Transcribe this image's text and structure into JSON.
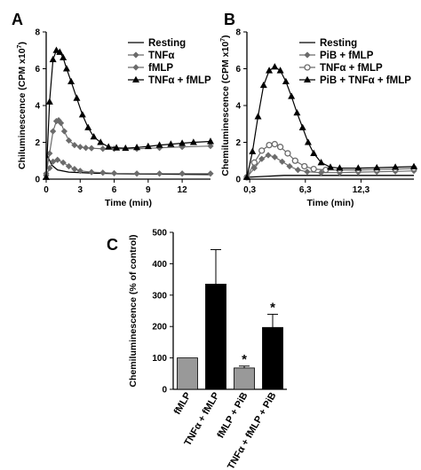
{
  "chart_data": [
    {
      "panel_letter": "A",
      "type": "line",
      "xlabel": "Time (min)",
      "ylabel": "Chiluminescence (CPM x10",
      "ylabel_sup": "7",
      "ylabel_close": ")",
      "xlim": [
        0,
        14.5
      ],
      "ylim": [
        0,
        8
      ],
      "xticks": [
        0,
        3,
        6,
        9,
        12
      ],
      "xtick_labels": [
        "0",
        "3",
        "6",
        "9",
        "12"
      ],
      "yticks": [
        0,
        2,
        4,
        6,
        8
      ],
      "ytick_labels": [
        "0",
        "2",
        "4",
        "6",
        "8"
      ],
      "legend_position": "top-right",
      "grid": false,
      "series": [
        {
          "name": "Resting",
          "marker": "none",
          "color": "#000000",
          "x": [
            0,
            0.5,
            1,
            2,
            4,
            6,
            8,
            10,
            12,
            14.5
          ],
          "y": [
            1.4,
            0.75,
            0.5,
            0.38,
            0.33,
            0.3,
            0.28,
            0.27,
            0.26,
            0.25
          ]
        },
        {
          "name": "TNFα",
          "marker": "diamond",
          "color": "#6b6b6b",
          "x": [
            0,
            0.3,
            0.6,
            1,
            1.5,
            2,
            2.5,
            3,
            4,
            5,
            6,
            8,
            10,
            12,
            14.5
          ],
          "y": [
            0.2,
            0.6,
            0.95,
            1.05,
            0.9,
            0.7,
            0.55,
            0.45,
            0.38,
            0.35,
            0.32,
            0.3,
            0.3,
            0.3,
            0.3
          ]
        },
        {
          "name": "fMLP",
          "marker": "diamond",
          "color": "#6b6b6b",
          "x": [
            0,
            0.3,
            0.6,
            0.9,
            1.1,
            1.3,
            1.6,
            2,
            2.5,
            3,
            3.5,
            4,
            5,
            6,
            8,
            10,
            12,
            14.5
          ],
          "y": [
            0.3,
            1.4,
            2.6,
            3.15,
            3.2,
            3.05,
            2.6,
            2.1,
            1.85,
            1.75,
            1.7,
            1.68,
            1.65,
            1.65,
            1.65,
            1.7,
            1.75,
            1.8
          ]
        },
        {
          "name": "TNFα + fMLP",
          "marker": "triangle",
          "color": "#000000",
          "x": [
            0,
            0.3,
            0.6,
            0.9,
            1.2,
            1.5,
            1.8,
            2.2,
            2.7,
            3.2,
            3.7,
            4.2,
            4.8,
            5.5,
            6.2,
            7,
            8,
            9,
            10,
            11,
            12,
            13,
            14.5
          ],
          "y": [
            0.1,
            4.2,
            6.5,
            7.0,
            6.9,
            6.6,
            6.0,
            5.3,
            4.4,
            3.5,
            2.8,
            2.3,
            2.0,
            1.75,
            1.7,
            1.68,
            1.72,
            1.78,
            1.85,
            1.9,
            1.95,
            2.0,
            2.05
          ]
        }
      ]
    },
    {
      "panel_letter": "B",
      "type": "line",
      "xlabel": "Time (min)",
      "ylabel": "Chemiluminescence (CPM x10",
      "ylabel_sup": "7",
      "ylabel_close": ")",
      "xlim": [
        0,
        18
      ],
      "ylim": [
        0,
        8
      ],
      "xticks": [
        0.3,
        6.3,
        12.3
      ],
      "xtick_labels": [
        "0,3",
        "6,3",
        "12,3"
      ],
      "yticks": [
        0,
        2,
        4,
        6,
        8
      ],
      "ytick_labels": [
        "0",
        "2",
        "4",
        "6",
        "8"
      ],
      "legend_position": "top-right",
      "grid": false,
      "series": [
        {
          "name": "Resting",
          "marker": "none",
          "color": "#000000",
          "x": [
            0,
            2,
            4,
            6,
            8,
            10,
            12,
            14,
            16,
            18
          ],
          "y": [
            0.1,
            0.15,
            0.2,
            0.2,
            0.2,
            0.2,
            0.2,
            0.2,
            0.2,
            0.2
          ]
        },
        {
          "name": "PiB + fMLP",
          "marker": "diamond",
          "color": "#6b6b6b",
          "x": [
            0,
            0.8,
            1.6,
            2.3,
            3,
            3.8,
            4.6,
            5.5,
            6.5,
            8,
            10,
            12,
            14,
            16,
            18
          ],
          "y": [
            0.1,
            0.6,
            1.1,
            1.3,
            1.2,
            0.95,
            0.7,
            0.5,
            0.4,
            0.35,
            0.35,
            0.38,
            0.4,
            0.42,
            0.45
          ]
        },
        {
          "name": "TNFα + fMLP",
          "marker": "circle",
          "color": "#6b6b6b",
          "x": [
            0,
            0.8,
            1.6,
            2.4,
            3,
            3.6,
            4.4,
            5.2,
            6.2,
            7.2,
            8.5,
            10,
            12,
            14,
            16,
            18
          ],
          "y": [
            0.1,
            0.9,
            1.55,
            1.85,
            1.9,
            1.75,
            1.4,
            1.0,
            0.7,
            0.55,
            0.5,
            0.5,
            0.5,
            0.52,
            0.55,
            0.58
          ]
        },
        {
          "name": "PiB + TNFα + fMLP",
          "marker": "triangle",
          "color": "#000000",
          "x": [
            0,
            0.6,
            1.2,
            1.8,
            2.4,
            3,
            3.6,
            4.2,
            4.8,
            5.4,
            6,
            6.6,
            7.2,
            8,
            9,
            10,
            12,
            14,
            16,
            18
          ],
          "y": [
            0.1,
            1.5,
            3.4,
            5.1,
            5.9,
            6.1,
            5.9,
            5.3,
            4.5,
            3.6,
            2.8,
            2.0,
            1.4,
            0.9,
            0.65,
            0.6,
            0.6,
            0.62,
            0.65,
            0.68
          ]
        }
      ]
    },
    {
      "panel_letter": "C",
      "type": "bar",
      "ylabel": "Chemiluminescence (% of control)",
      "ylim": [
        0,
        500
      ],
      "yticks": [
        0,
        100,
        200,
        300,
        400,
        500
      ],
      "ytick_labels": [
        "0",
        "100",
        "200",
        "300",
        "400",
        "500"
      ],
      "categories": [
        "fMLP",
        "TNFα + fMLP",
        "fMLP + PiB",
        "TNFα + fMLP + PiB"
      ],
      "values": [
        100,
        335,
        68,
        197
      ],
      "errors": [
        0,
        110,
        6,
        42
      ],
      "significance": [
        "",
        "",
        "*",
        "*"
      ],
      "colors": [
        "#999999",
        "#000000",
        "#999999",
        "#000000"
      ],
      "grid": false
    }
  ]
}
